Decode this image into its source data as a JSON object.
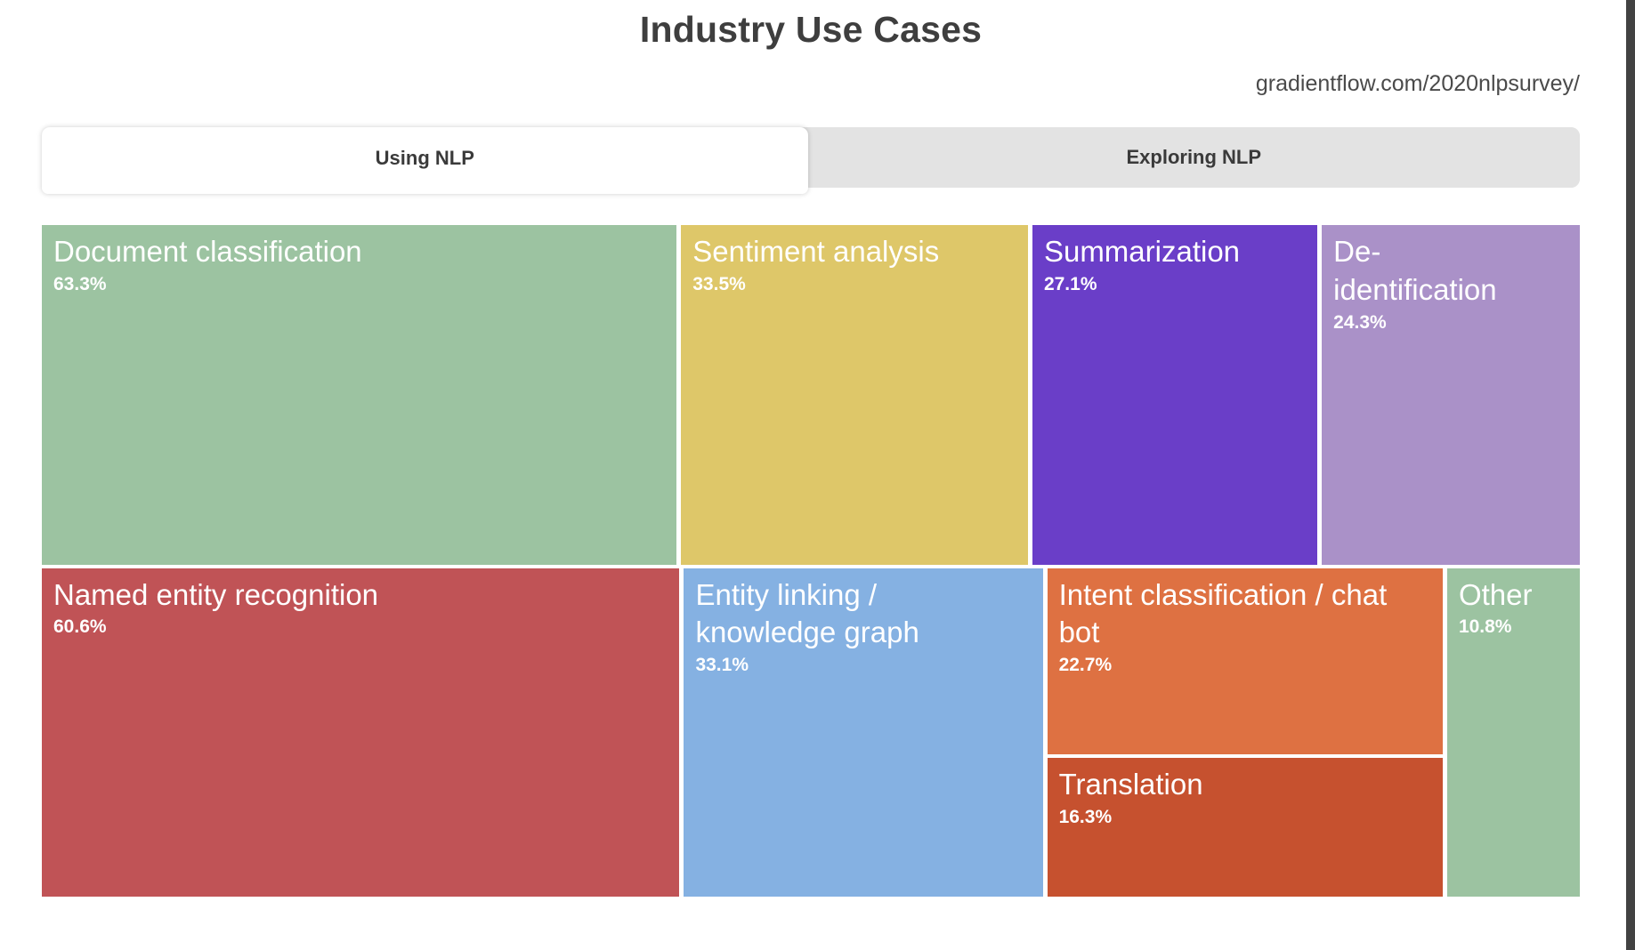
{
  "header": {
    "title": "Industry Use Cases",
    "source_url": "gradientflow.com/2020nlpsurvey/"
  },
  "tabs": [
    {
      "label": "Using NLP",
      "active": true
    },
    {
      "label": "Exploring NLP",
      "active": false
    }
  ],
  "chart_data": {
    "type": "treemap",
    "title": "Industry Use Cases",
    "active_tab": "Using NLP",
    "value_unit": "%",
    "rows": [
      {
        "cells": [
          {
            "label": "Document classification",
            "value": 63.3,
            "pct": "63.3%",
            "color": "#9cc3a1"
          },
          {
            "label": "Sentiment analysis",
            "value": 33.5,
            "pct": "33.5%",
            "color": "#dec769"
          },
          {
            "label": "Summarization",
            "value": 27.1,
            "pct": "27.1%",
            "color": "#6a3ec8"
          },
          {
            "label": "De-identification",
            "value": 24.3,
            "pct": "24.3%",
            "color": "#aa91c8"
          }
        ]
      },
      {
        "cells": [
          {
            "label": "Named entity recognition",
            "value": 60.6,
            "pct": "60.6%",
            "color": "#c05356"
          },
          {
            "label": "Entity linking / knowledge graph",
            "value": 33.1,
            "pct": "33.1%",
            "color": "#85b1e2"
          },
          {
            "stack": [
              {
                "label": "Intent classification / chat bot",
                "value": 22.7,
                "pct": "22.7%",
                "color": "#de7142"
              },
              {
                "label": "Translation",
                "value": 16.3,
                "pct": "16.3%",
                "color": "#c6512f"
              }
            ]
          },
          {
            "label": "Other",
            "value": 10.8,
            "pct": "10.8%",
            "color": "#9cc3a1"
          }
        ]
      }
    ]
  }
}
